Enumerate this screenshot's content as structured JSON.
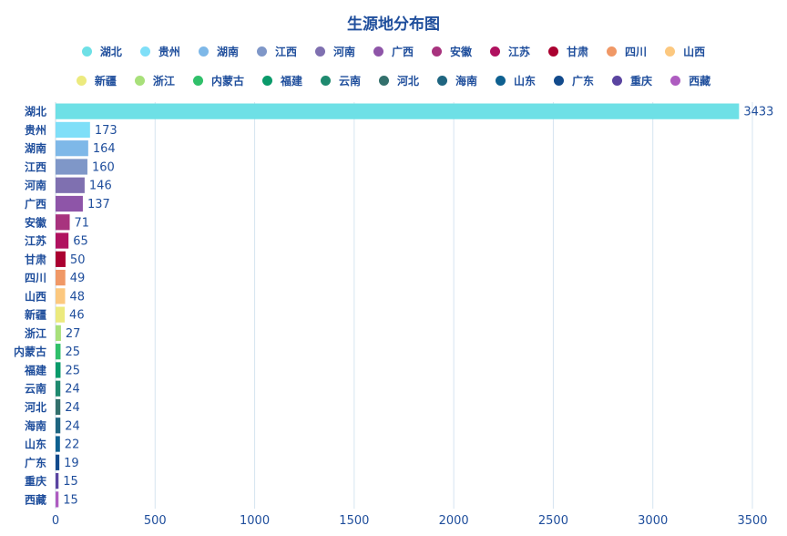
{
  "chart_data": {
    "type": "bar",
    "orientation": "horizontal",
    "title": "生源地分布图",
    "categories": [
      "湖北",
      "贵州",
      "湖南",
      "江西",
      "河南",
      "广西",
      "安徽",
      "江苏",
      "甘肃",
      "四川",
      "山西",
      "新疆",
      "浙江",
      "内蒙古",
      "福建",
      "云南",
      "河北",
      "海南",
      "山东",
      "广东",
      "重庆",
      "西藏"
    ],
    "values": [
      3433,
      173,
      164,
      160,
      146,
      137,
      71,
      65,
      50,
      49,
      48,
      46,
      27,
      25,
      25,
      24,
      24,
      24,
      22,
      19,
      15,
      15
    ],
    "colors": [
      "#6ee0e6",
      "#7fdff8",
      "#7eb8e8",
      "#7f97c8",
      "#7f70b0",
      "#8e55a8",
      "#a8337e",
      "#b0115f",
      "#aa0030",
      "#f09866",
      "#fcc87f",
      "#ecea7e",
      "#a8e07a",
      "#30c06a",
      "#0a9a6a",
      "#1f8a6f",
      "#33706c",
      "#1f6580",
      "#0e6090",
      "#124a8c",
      "#5a44a0",
      "#ae5cc0"
    ],
    "xlim": [
      0,
      3500
    ],
    "xticks": [
      0,
      500,
      1000,
      1500,
      2000,
      2500,
      3000,
      3500
    ],
    "grid": true,
    "legend_position": "top-center"
  }
}
